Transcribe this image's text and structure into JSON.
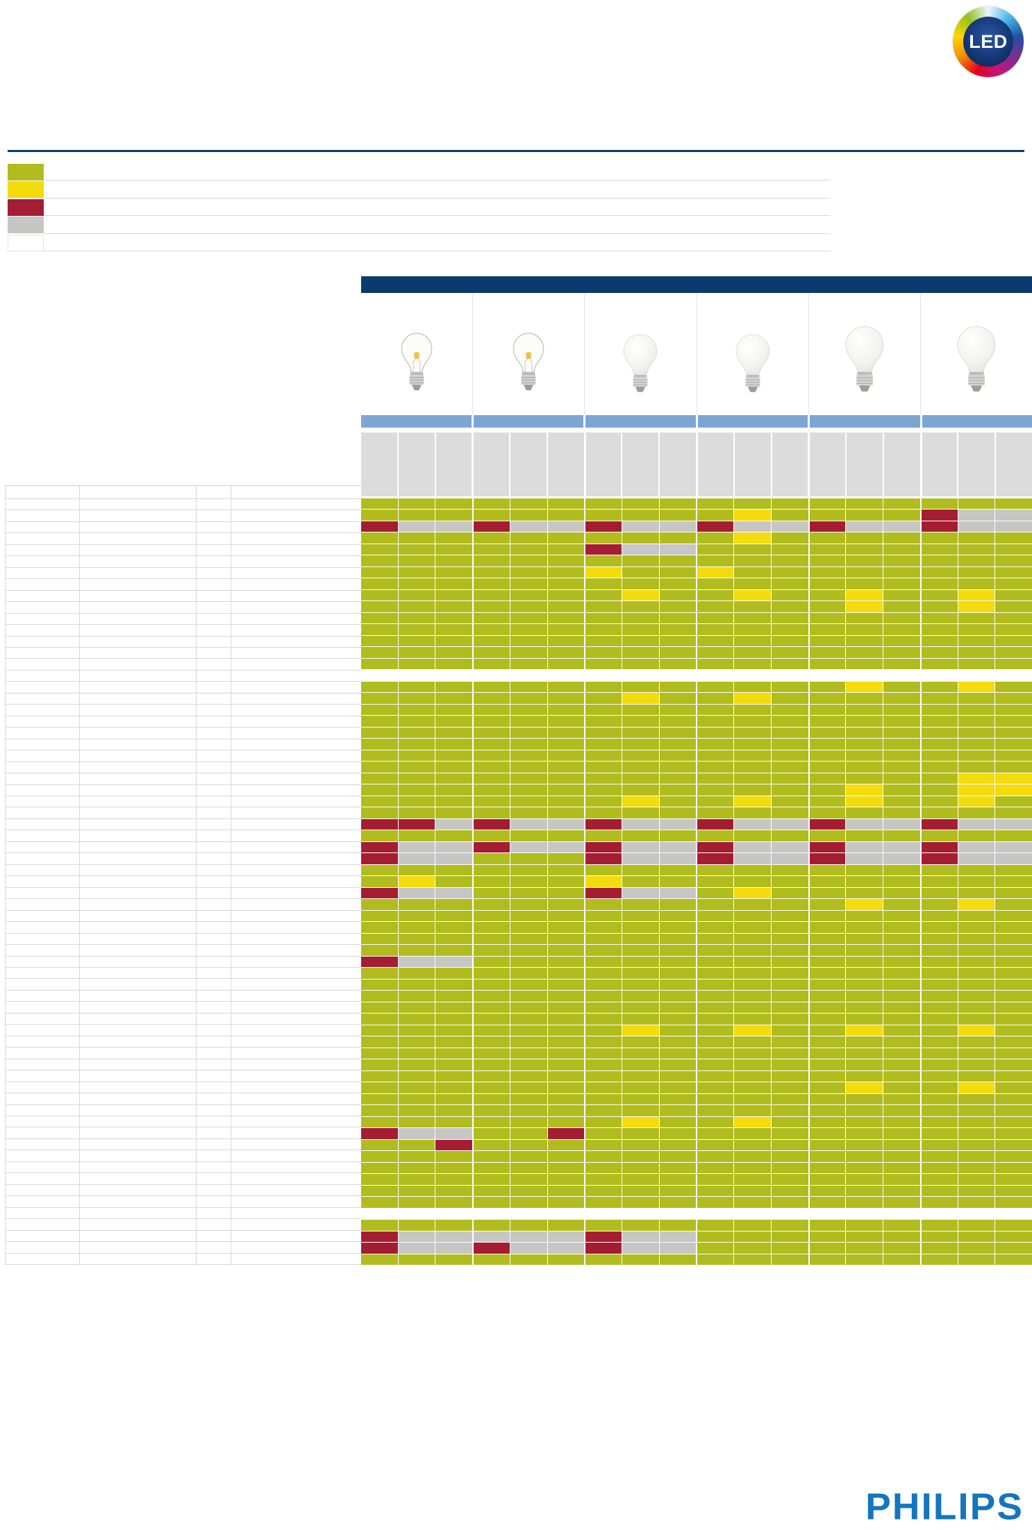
{
  "branding": {
    "led_logo_text": "LED",
    "philips_logo_text": "PHILIPS"
  },
  "colors": {
    "navy": "#0a3a6e",
    "green": "#b1bc1e",
    "yellow": "#f3db0c",
    "red": "#a41d33",
    "gray": "#c6c6c5",
    "header_gray": "#dcdcdc",
    "light_blue": "#7ca6d6",
    "philips_blue": "#1476bd"
  },
  "legend": {
    "items": [
      {
        "color_key": "green",
        "label": ""
      },
      {
        "color_key": "yellow",
        "label": ""
      },
      {
        "color_key": "red",
        "label": ""
      },
      {
        "color_key": "gray",
        "label": ""
      },
      {
        "color_key": "white",
        "label": ""
      }
    ]
  },
  "matrix": {
    "groups": [
      {
        "bulb": "clear"
      },
      {
        "bulb": "clear"
      },
      {
        "bulb": "frosted-small"
      },
      {
        "bulb": "frosted-small"
      },
      {
        "bulb": "frosted-large"
      },
      {
        "bulb": "frosted-large"
      }
    ],
    "sub_columns_per_group": 3,
    "legend_key": {
      "G": "green",
      "Y": "yellow",
      "R": "red",
      "X": "gray",
      "W": "white"
    },
    "rows": [
      "GGGGGGGGGGGGGGGGGG",
      "GGGGGGGGGGYGGGGRXX",
      "RXXRXXRXXRXXRXXRXX",
      "GGGGGGGGGGYGGGGGGG",
      "GGGGGGRXXGGGGGGGGG",
      "GGGGGGGGGGGGGGGGGG",
      "GGGGGGYGGYGGGGGGGG",
      "GGGGGGGGGGGGGGGGGG",
      "GGGGGGGYGGYGGYGGYG",
      "GGGGGGGGGGGGGYGGYG",
      "GGGGGGGGGGGGGGGGGG",
      "GGGGGGGGGGGGGGGGGG",
      "GGGGGGGGGGGGGGGGGG",
      "GGGGGGGGGGGGGGGGGG",
      "GGGGGGGGGGGGGGGGGG",
      "WWWWWWWWWWWWWWWWWW",
      "GGGGGGGGGGGGGYGGYG",
      "GGGGGGGYGGYGGGGGGG",
      "GGGGGGGGGGGGGGGGGG",
      "GGGGGGGGGGGGGGGGGG",
      "GGGGGGGGGGGGGGGGGG",
      "GGGGGGGGGGGGGGGGGG",
      "GGGGGGGGGGGGGGGGGG",
      "GGGGGGGGGGGGGGGGGG",
      "GGGGGGGGGGGGGGGGYY",
      "GGGGGGGGGGGGGYGGYY",
      "GGGGGGGYGGYGGYGGYG",
      "GGGGGGGGGGGGGGGGGG",
      "RRXRXXRXXRXXRXXRXX",
      "GGGGGGGGGGGGGGGGGG",
      "RXXRXXRXXRXXRXXRXX",
      "RXXGGGRXXRXXRXXRXX",
      "GGGGGGGGGGGGGGGGGG",
      "GYGGGGYGGGGGGGGGGG",
      "RXXGGGRXXGYGGGGGGG",
      "GGGGGGGGGGGGGYGGYG",
      "GGGGGGGGGGGGGGGGGG",
      "GGGGGGGGGGGGGGGGGG",
      "GGGGGGGGGGGGGGGGGG",
      "GGGGGGGGGGGGGGGGGG",
      "RXXGGGGGGGGGGGGGGG",
      "GGGGGGGGGGGGGGGGGG",
      "GGGGGGGGGGGGGGGGGG",
      "GGGGGGGGGGGGGGGGGG",
      "GGGGGGGGGGGGGGGGGG",
      "GGGGGGGGGGGGGGGGGG",
      "GGGGGGGYGGYGGYGGYG",
      "GGGGGGGGGGGGGGGGGG",
      "GGGGGGGGGGGGGGGGGG",
      "GGGGGGGGGGGGGGGGGG",
      "GGGGGGGGGGGGGGGGGG",
      "GGGGGGGGGGGGGYGGYG",
      "GGGGGGGGGGGGGGGGGG",
      "GGGGGGGGGGGGGGGGGG",
      "GGGGGGGYGGYGGGGGGG",
      "RXXGGRGGGGGGGGGGGG",
      "GGRGGGGGGGGGGGGGGG",
      "GGGGGGGGGGGGGGGGGG",
      "GGGGGGGGGGGGGGGGGG",
      "GGGGGGGGGGGGGGGGGG",
      "GGGGGGGGGGGGGGGGGG",
      "GGGGGGGGGGGGGGGGGG",
      "WWWWWWWWWWWWWWWWWW",
      "GGGGGGGGGGGGGGGGGG",
      "RXXXXXRXXGGGGGGGGG",
      "RXXRXXRXXGGGGGGGGG",
      "GGGGGGGGGGGGGGGGGG"
    ]
  },
  "left_table": {
    "columns": 4,
    "rows": 67,
    "cells": ""
  }
}
